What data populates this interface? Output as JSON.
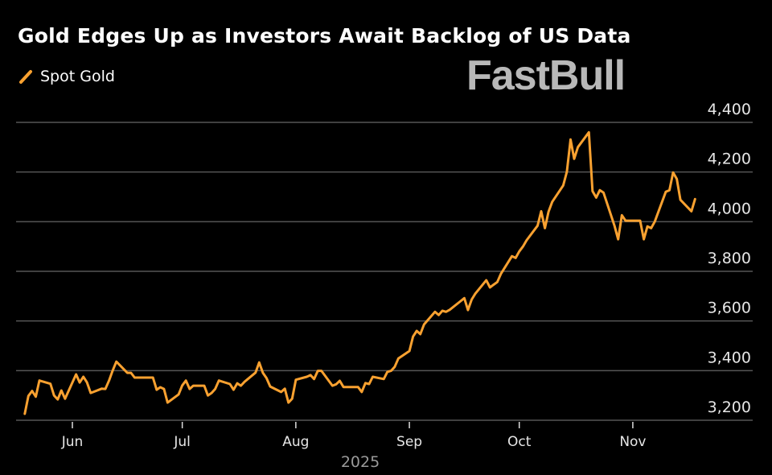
{
  "title": "Gold Edges Up as Investors Await Backlog of US Data",
  "watermark": "FastBull",
  "colors": {
    "series": "#F9A130",
    "grid": "#555555",
    "background": "#000000",
    "year_label": "#9a9a9a"
  },
  "chart_data": {
    "type": "line",
    "title": "Gold Edges Up as Investors Await Backlog of US Data",
    "xlabel": "2025",
    "ylabel": "",
    "ylim": [
      3200,
      4400
    ],
    "y_ticks": [
      3200,
      3400,
      3600,
      3800,
      4000,
      4200,
      4400
    ],
    "y_tick_labels": [
      "3,200",
      "3,400",
      "3,600",
      "3,800",
      "4,000",
      "4,200",
      "4,400"
    ],
    "x_ticks": [
      "2025-06-01",
      "2025-07-01",
      "2025-08-01",
      "2025-09-01",
      "2025-10-01",
      "2025-11-01"
    ],
    "x_tick_labels": [
      "Jun",
      "Jul",
      "Aug",
      "Sep",
      "Oct",
      "Nov"
    ],
    "y_axis_position": "right",
    "grid": true,
    "legend_placement": "top-left",
    "series": [
      {
        "name": "Spot Gold",
        "color": "#F9A130",
        "points": [
          [
            "2025-05-19",
            3226
          ],
          [
            "2025-05-20",
            3298
          ],
          [
            "2025-05-21",
            3318
          ],
          [
            "2025-05-22",
            3295
          ],
          [
            "2025-05-23",
            3360
          ],
          [
            "2025-05-26",
            3347
          ],
          [
            "2025-05-27",
            3300
          ],
          [
            "2025-05-28",
            3284
          ],
          [
            "2025-05-29",
            3320
          ],
          [
            "2025-05-30",
            3287
          ],
          [
            "2025-06-02",
            3385
          ],
          [
            "2025-06-03",
            3352
          ],
          [
            "2025-06-04",
            3375
          ],
          [
            "2025-06-05",
            3352
          ],
          [
            "2025-06-06",
            3310
          ],
          [
            "2025-06-09",
            3327
          ],
          [
            "2025-06-10",
            3326
          ],
          [
            "2025-06-11",
            3360
          ],
          [
            "2025-06-12",
            3400
          ],
          [
            "2025-06-13",
            3436
          ],
          [
            "2025-06-16",
            3391
          ],
          [
            "2025-06-17",
            3391
          ],
          [
            "2025-06-18",
            3372
          ],
          [
            "2025-06-19",
            3372
          ],
          [
            "2025-06-20",
            3372
          ],
          [
            "2025-06-23",
            3372
          ],
          [
            "2025-06-24",
            3323
          ],
          [
            "2025-06-25",
            3333
          ],
          [
            "2025-06-26",
            3326
          ],
          [
            "2025-06-27",
            3271
          ],
          [
            "2025-06-30",
            3304
          ],
          [
            "2025-07-01",
            3340
          ],
          [
            "2025-07-02",
            3360
          ],
          [
            "2025-07-03",
            3326
          ],
          [
            "2025-07-04",
            3339
          ],
          [
            "2025-07-07",
            3339
          ],
          [
            "2025-07-08",
            3300
          ],
          [
            "2025-07-09",
            3310
          ],
          [
            "2025-07-10",
            3326
          ],
          [
            "2025-07-11",
            3360
          ],
          [
            "2025-07-14",
            3346
          ],
          [
            "2025-07-15",
            3323
          ],
          [
            "2025-07-16",
            3349
          ],
          [
            "2025-07-17",
            3339
          ],
          [
            "2025-07-18",
            3355
          ],
          [
            "2025-07-21",
            3392
          ],
          [
            "2025-07-22",
            3433
          ],
          [
            "2025-07-23",
            3391
          ],
          [
            "2025-07-24",
            3370
          ],
          [
            "2025-07-25",
            3336
          ],
          [
            "2025-07-28",
            3314
          ],
          [
            "2025-07-29",
            3327
          ],
          [
            "2025-07-30",
            3271
          ],
          [
            "2025-07-31",
            3287
          ],
          [
            "2025-08-01",
            3363
          ],
          [
            "2025-08-04",
            3375
          ],
          [
            "2025-08-05",
            3382
          ],
          [
            "2025-08-06",
            3366
          ],
          [
            "2025-08-07",
            3399
          ],
          [
            "2025-08-08",
            3399
          ],
          [
            "2025-08-11",
            3339
          ],
          [
            "2025-08-12",
            3345
          ],
          [
            "2025-08-13",
            3359
          ],
          [
            "2025-08-14",
            3334
          ],
          [
            "2025-08-15",
            3334
          ],
          [
            "2025-08-18",
            3334
          ],
          [
            "2025-08-19",
            3314
          ],
          [
            "2025-08-20",
            3350
          ],
          [
            "2025-08-21",
            3346
          ],
          [
            "2025-08-22",
            3375
          ],
          [
            "2025-08-25",
            3366
          ],
          [
            "2025-08-26",
            3395
          ],
          [
            "2025-08-27",
            3399
          ],
          [
            "2025-08-28",
            3415
          ],
          [
            "2025-08-29",
            3449
          ],
          [
            "2025-09-01",
            3479
          ],
          [
            "2025-09-02",
            3537
          ],
          [
            "2025-09-03",
            3560
          ],
          [
            "2025-09-04",
            3547
          ],
          [
            "2025-09-05",
            3586
          ],
          [
            "2025-09-08",
            3637
          ],
          [
            "2025-09-09",
            3624
          ],
          [
            "2025-09-10",
            3641
          ],
          [
            "2025-09-11",
            3637
          ],
          [
            "2025-09-12",
            3645
          ],
          [
            "2025-09-15",
            3680
          ],
          [
            "2025-09-16",
            3692
          ],
          [
            "2025-09-17",
            3644
          ],
          [
            "2025-09-18",
            3686
          ],
          [
            "2025-09-19",
            3710
          ],
          [
            "2025-09-22",
            3764
          ],
          [
            "2025-09-23",
            3735
          ],
          [
            "2025-09-24",
            3746
          ],
          [
            "2025-09-25",
            3757
          ],
          [
            "2025-09-26",
            3790
          ],
          [
            "2025-09-29",
            3861
          ],
          [
            "2025-09-30",
            3854
          ],
          [
            "2025-10-01",
            3880
          ],
          [
            "2025-10-02",
            3900
          ],
          [
            "2025-10-03",
            3925
          ],
          [
            "2025-10-06",
            3984
          ],
          [
            "2025-10-07",
            4042
          ],
          [
            "2025-10-08",
            3974
          ],
          [
            "2025-10-09",
            4040
          ],
          [
            "2025-10-10",
            4080
          ],
          [
            "2025-10-13",
            4146
          ],
          [
            "2025-10-14",
            4201
          ],
          [
            "2025-10-15",
            4331
          ],
          [
            "2025-10-16",
            4253
          ],
          [
            "2025-10-17",
            4300
          ],
          [
            "2025-10-20",
            4360
          ],
          [
            "2025-10-21",
            4123
          ],
          [
            "2025-10-22",
            4097
          ],
          [
            "2025-10-23",
            4127
          ],
          [
            "2025-10-24",
            4117
          ],
          [
            "2025-10-27",
            3984
          ],
          [
            "2025-10-28",
            3929
          ],
          [
            "2025-10-29",
            4026
          ],
          [
            "2025-10-30",
            4004
          ],
          [
            "2025-10-31",
            4004
          ],
          [
            "2025-11-03",
            4004
          ],
          [
            "2025-11-04",
            3929
          ],
          [
            "2025-11-05",
            3981
          ],
          [
            "2025-11-06",
            3974
          ],
          [
            "2025-11-07",
            4000
          ],
          [
            "2025-11-10",
            4120
          ],
          [
            "2025-11-11",
            4127
          ],
          [
            "2025-11-12",
            4198
          ],
          [
            "2025-11-13",
            4172
          ],
          [
            "2025-11-14",
            4088
          ],
          [
            "2025-11-17",
            4042
          ],
          [
            "2025-11-18",
            4091
          ]
        ]
      }
    ]
  }
}
